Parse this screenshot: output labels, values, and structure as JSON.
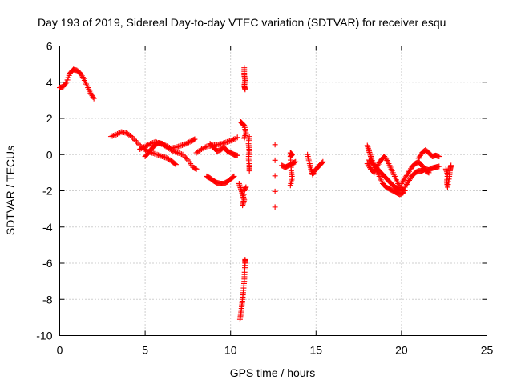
{
  "chart_data": {
    "type": "scatter",
    "title": "Day 193 of 2019, Sidereal Day-to-day VTEC variation (SDTVAR) for receiver esqu",
    "xlabel": "GPS time / hours",
    "ylabel": "SDTVAR / TECUs",
    "xlim": [
      0,
      25
    ],
    "ylim": [
      -10,
      6
    ],
    "x_ticks": [
      "0",
      "5",
      "10",
      "15",
      "20",
      "25"
    ],
    "y_ticks": [
      "-10",
      "-8",
      "-6",
      "-4",
      "-2",
      "0",
      "2",
      "4",
      "6"
    ],
    "grid": true,
    "marker": "+",
    "color": "#ff0000",
    "segments": [
      {
        "name": "s1",
        "points": [
          [
            0.0,
            3.7
          ],
          [
            0.2,
            3.75
          ],
          [
            0.4,
            4.0
          ],
          [
            0.6,
            4.5
          ],
          [
            0.8,
            4.7
          ],
          [
            1.0,
            4.65
          ],
          [
            1.2,
            4.5
          ],
          [
            1.4,
            4.2
          ],
          [
            1.6,
            3.8
          ],
          [
            1.8,
            3.4
          ],
          [
            2.0,
            3.1
          ]
        ]
      },
      {
        "name": "s2",
        "points": [
          [
            3.0,
            1.0
          ],
          [
            3.3,
            1.1
          ],
          [
            3.6,
            1.25
          ],
          [
            3.9,
            1.2
          ],
          [
            4.2,
            1.0
          ],
          [
            4.5,
            0.7
          ],
          [
            4.8,
            0.4
          ],
          [
            5.1,
            0.2
          ],
          [
            5.4,
            0.1
          ],
          [
            5.7,
            0.0
          ],
          [
            6.0,
            -0.1
          ],
          [
            6.3,
            -0.2
          ],
          [
            6.6,
            -0.4
          ],
          [
            6.8,
            -0.55
          ]
        ]
      },
      {
        "name": "s3",
        "points": [
          [
            4.7,
            0.3
          ],
          [
            5.0,
            0.45
          ],
          [
            5.3,
            0.6
          ],
          [
            5.6,
            0.7
          ],
          [
            5.9,
            0.6
          ],
          [
            6.2,
            0.5
          ],
          [
            6.5,
            0.35
          ],
          [
            6.8,
            0.4
          ],
          [
            7.1,
            0.5
          ],
          [
            7.4,
            0.6
          ],
          [
            7.7,
            0.75
          ],
          [
            7.9,
            0.85
          ]
        ]
      },
      {
        "name": "s4",
        "points": [
          [
            5.0,
            -0.1
          ],
          [
            5.2,
            0.1
          ],
          [
            5.4,
            0.35
          ],
          [
            5.6,
            0.55
          ],
          [
            5.8,
            0.65
          ],
          [
            6.0,
            0.6
          ],
          [
            6.3,
            0.4
          ],
          [
            6.6,
            0.2
          ],
          [
            6.9,
            0.1
          ],
          [
            7.2,
            0.0
          ],
          [
            7.5,
            -0.3
          ],
          [
            7.8,
            -0.7
          ],
          [
            8.0,
            -0.8
          ]
        ]
      },
      {
        "name": "s5",
        "points": [
          [
            8.0,
            0.1
          ],
          [
            8.3,
            0.3
          ],
          [
            8.6,
            0.45
          ],
          [
            8.9,
            0.5
          ],
          [
            9.2,
            0.55
          ],
          [
            9.5,
            0.6
          ],
          [
            9.8,
            0.7
          ],
          [
            10.1,
            0.8
          ],
          [
            10.4,
            0.95
          ]
        ]
      },
      {
        "name": "s6",
        "points": [
          [
            8.8,
            0.6
          ],
          [
            9.0,
            0.4
          ],
          [
            9.2,
            0.2
          ],
          [
            9.4,
            0.25
          ],
          [
            9.6,
            0.4
          ],
          [
            9.8,
            0.2
          ],
          [
            10.0,
            0.1
          ],
          [
            10.2,
            0.0
          ],
          [
            10.4,
            -0.05
          ]
        ]
      },
      {
        "name": "s7",
        "points": [
          [
            8.6,
            -1.2
          ],
          [
            8.8,
            -1.3
          ],
          [
            9.0,
            -1.45
          ],
          [
            9.2,
            -1.55
          ],
          [
            9.4,
            -1.6
          ],
          [
            9.6,
            -1.6
          ],
          [
            9.8,
            -1.5
          ],
          [
            10.0,
            -1.35
          ],
          [
            10.2,
            -1.2
          ]
        ]
      },
      {
        "name": "s8",
        "points": [
          [
            10.5,
            -1.6
          ],
          [
            10.6,
            -1.9
          ],
          [
            10.7,
            -2.2
          ],
          [
            10.8,
            -2.5
          ],
          [
            10.7,
            -2.8
          ],
          [
            10.8,
            -2.0
          ],
          [
            10.9,
            -1.8
          ]
        ]
      },
      {
        "name": "s9",
        "points": [
          [
            10.6,
            1.8
          ],
          [
            10.7,
            1.7
          ],
          [
            10.8,
            1.6
          ],
          [
            10.9,
            1.2
          ],
          [
            10.8,
            0.9
          ]
        ]
      },
      {
        "name": "s10",
        "points": [
          [
            10.8,
            4.8
          ],
          [
            10.8,
            4.4
          ],
          [
            10.85,
            4.1
          ],
          [
            10.8,
            3.8
          ],
          [
            10.85,
            3.6
          ]
        ]
      },
      {
        "name": "s11",
        "points": [
          [
            10.55,
            -9.1
          ],
          [
            10.6,
            -8.8
          ],
          [
            10.65,
            -8.4
          ],
          [
            10.7,
            -8.0
          ],
          [
            10.75,
            -7.5
          ],
          [
            10.8,
            -7.0
          ],
          [
            10.82,
            -6.5
          ],
          [
            10.85,
            -6.0
          ],
          [
            10.85,
            -5.8
          ]
        ]
      },
      {
        "name": "s12",
        "points": [
          [
            11.1,
            1.0
          ],
          [
            11.05,
            0.6
          ],
          [
            11.1,
            0.2
          ],
          [
            11.05,
            -0.2
          ],
          [
            11.1,
            -0.6
          ],
          [
            11.1,
            -0.9
          ]
        ]
      },
      {
        "name": "s13",
        "points": [
          [
            12.6,
            0.55
          ],
          [
            12.6,
            -2.9
          ]
        ]
      },
      {
        "name": "s14",
        "points": [
          [
            13.0,
            -0.6
          ],
          [
            13.2,
            -0.7
          ],
          [
            13.4,
            -0.6
          ],
          [
            13.6,
            -0.5
          ],
          [
            13.8,
            -0.4
          ]
        ]
      },
      {
        "name": "s15",
        "points": [
          [
            13.5,
            0.1
          ],
          [
            13.6,
            0.0
          ],
          [
            13.5,
            -0.1
          ],
          [
            13.55,
            -0.9
          ],
          [
            13.6,
            -1.3
          ],
          [
            13.5,
            -1.7
          ]
        ]
      },
      {
        "name": "s16",
        "points": [
          [
            14.5,
            0.0
          ],
          [
            14.6,
            -0.4
          ],
          [
            14.7,
            -0.8
          ],
          [
            14.8,
            -1.1
          ],
          [
            15.0,
            -0.8
          ],
          [
            15.2,
            -0.6
          ],
          [
            15.4,
            -0.4
          ]
        ]
      },
      {
        "name": "s17",
        "points": [
          [
            18.0,
            0.5
          ],
          [
            18.1,
            0.2
          ],
          [
            18.2,
            -0.1
          ],
          [
            18.3,
            -0.4
          ],
          [
            18.5,
            -0.7
          ],
          [
            18.7,
            -0.9
          ],
          [
            18.9,
            -1.1
          ],
          [
            19.1,
            -1.3
          ],
          [
            19.3,
            -1.5
          ],
          [
            19.5,
            -1.7
          ],
          [
            19.7,
            -1.85
          ],
          [
            19.9,
            -2.0
          ]
        ]
      },
      {
        "name": "s18",
        "points": [
          [
            18.0,
            -0.5
          ],
          [
            18.2,
            -0.8
          ],
          [
            18.4,
            -1.0
          ],
          [
            18.6,
            -0.6
          ],
          [
            18.8,
            -0.3
          ],
          [
            19.0,
            -0.1
          ],
          [
            19.2,
            -0.4
          ],
          [
            19.4,
            -0.8
          ],
          [
            19.6,
            -1.2
          ],
          [
            19.8,
            -1.6
          ],
          [
            20.0,
            -1.9
          ],
          [
            20.2,
            -2.0
          ]
        ]
      },
      {
        "name": "s19",
        "points": [
          [
            18.1,
            -0.3
          ],
          [
            18.3,
            -0.5
          ],
          [
            18.5,
            -0.8
          ],
          [
            18.7,
            -1.2
          ],
          [
            18.9,
            -1.6
          ],
          [
            19.1,
            -1.8
          ],
          [
            19.3,
            -1.9
          ],
          [
            19.5,
            -2.0
          ],
          [
            19.7,
            -2.1
          ],
          [
            19.9,
            -2.2
          ],
          [
            20.1,
            -2.1
          ]
        ]
      },
      {
        "name": "s20",
        "points": [
          [
            20.2,
            -1.8
          ],
          [
            20.4,
            -1.5
          ],
          [
            20.6,
            -1.2
          ],
          [
            20.8,
            -1.0
          ],
          [
            21.0,
            -0.9
          ],
          [
            21.2,
            -0.9
          ],
          [
            21.4,
            -0.8
          ],
          [
            21.6,
            -0.85
          ],
          [
            21.8,
            -0.75
          ],
          [
            22.0,
            -0.7
          ],
          [
            22.2,
            -0.65
          ]
        ]
      },
      {
        "name": "s21",
        "points": [
          [
            20.0,
            -1.6
          ],
          [
            20.2,
            -1.3
          ],
          [
            20.4,
            -1.0
          ],
          [
            20.6,
            -0.7
          ],
          [
            20.8,
            -0.5
          ],
          [
            21.0,
            -0.4
          ],
          [
            21.2,
            -0.6
          ],
          [
            21.4,
            -0.9
          ],
          [
            21.6,
            -1.0
          ]
        ]
      },
      {
        "name": "s22",
        "points": [
          [
            21.0,
            -0.2
          ],
          [
            21.2,
            0.1
          ],
          [
            21.4,
            0.25
          ],
          [
            21.6,
            0.1
          ],
          [
            21.8,
            -0.1
          ],
          [
            22.0,
            -0.05
          ],
          [
            22.2,
            -0.1
          ]
        ]
      },
      {
        "name": "s23",
        "points": [
          [
            22.6,
            -0.8
          ],
          [
            22.7,
            -1.1
          ],
          [
            22.65,
            -1.5
          ],
          [
            22.7,
            -1.8
          ],
          [
            22.8,
            -1.2
          ],
          [
            22.85,
            -0.8
          ],
          [
            22.9,
            -0.6
          ]
        ]
      }
    ]
  }
}
